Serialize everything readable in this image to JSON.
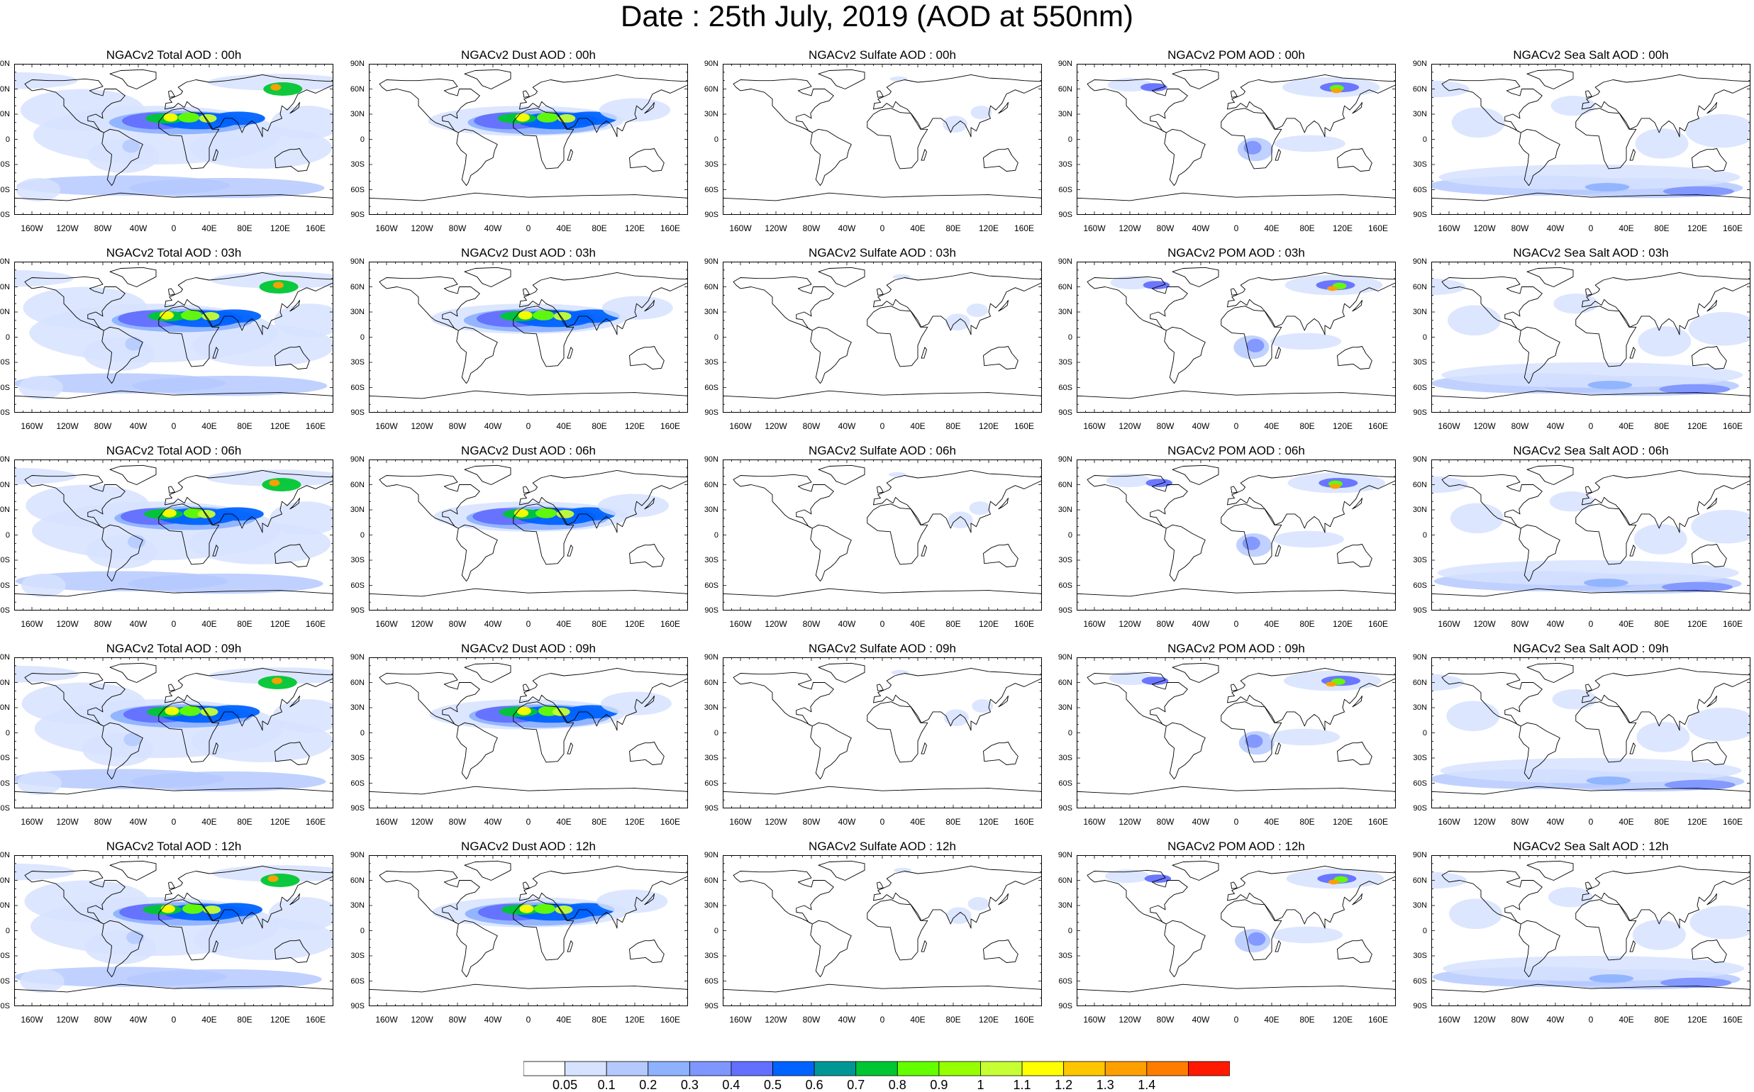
{
  "title": "Date : 25th July, 2019 (AOD at 550nm)",
  "columns": [
    {
      "key": "total",
      "titles": [
        "NGACv2 Total AOD : 00h",
        "NGACv2 Total AOD : 03h",
        "NGACv2 Total AOD : 06h",
        "NGACv2 Total AOD : 09h",
        "NGACv2 Total AOD  : 12h"
      ]
    },
    {
      "key": "dust",
      "titles": [
        "NGACv2 Dust AOD : 00h",
        "NGACv2 Dust AOD : 03h",
        "NGACv2 Dust AOD : 06h",
        "NGACv2 Dust AOD : 09h",
        "NGACv2 Dust AOD : 12h"
      ]
    },
    {
      "key": "sulfate",
      "titles": [
        "NGACv2 Sulfate AOD : 00h",
        "NGACv2 Sulfate AOD : 03h",
        "NGACv2 Sulfate AOD : 06h",
        "NGACv2 Sulfate AOD : 09h",
        "NGACv2 Sulfate AOD : 12h"
      ]
    },
    {
      "key": "pom",
      "titles": [
        "NGACv2 POM AOD : 00h",
        "NGACv2 POM AOD : 03h",
        "NGACv2 POM AOD : 06h",
        "NGACv2 POM AOD : 09h",
        "NGACv2 POM  AOD : 12h"
      ]
    },
    {
      "key": "seasalt",
      "titles": [
        "NGACv2 Sea Salt AOD : 00h",
        "NGACv2 Sea Salt AOD : 03h",
        "NGACv2 Sea Salt AOD : 06h",
        "NGACv2 Sea Salt  AOD : 09h",
        "NGACv2 Sea Salt  AOD : 12h"
      ]
    }
  ],
  "lat_labels": [
    "90N",
    "60N",
    "30N",
    "0",
    "30S",
    "60S",
    "90S"
  ],
  "lon_labels": [
    "160W",
    "120W",
    "80W",
    "40W",
    "0",
    "40E",
    "80E",
    "120E",
    "160E"
  ],
  "colorbar": {
    "labels": [
      "0.05",
      "0.1",
      "0.2",
      "0.3",
      "0.4",
      "0.5",
      "0.6",
      "0.7",
      "0.8",
      "0.9",
      "1",
      "1.1",
      "1.2",
      "1.3",
      "1.4"
    ],
    "colors": [
      "#ffffff",
      "#d6e2ff",
      "#b5c9ff",
      "#8eb2ff",
      "#7f96ff",
      "#6370ff",
      "#0063ff",
      "#009696",
      "#00c633",
      "#63ff00",
      "#96ff00",
      "#c6ff33",
      "#ffff00",
      "#ffc600",
      "#ffa000",
      "#ff7c00",
      "#ff1900"
    ]
  },
  "map_colors": {
    "land_line": "#000000",
    "low": "#d6e2ff",
    "mid": "#8eb2ff",
    "dust_core": "#00c633",
    "dust_peak": "#ffff00",
    "hot": "#ff1900"
  }
}
